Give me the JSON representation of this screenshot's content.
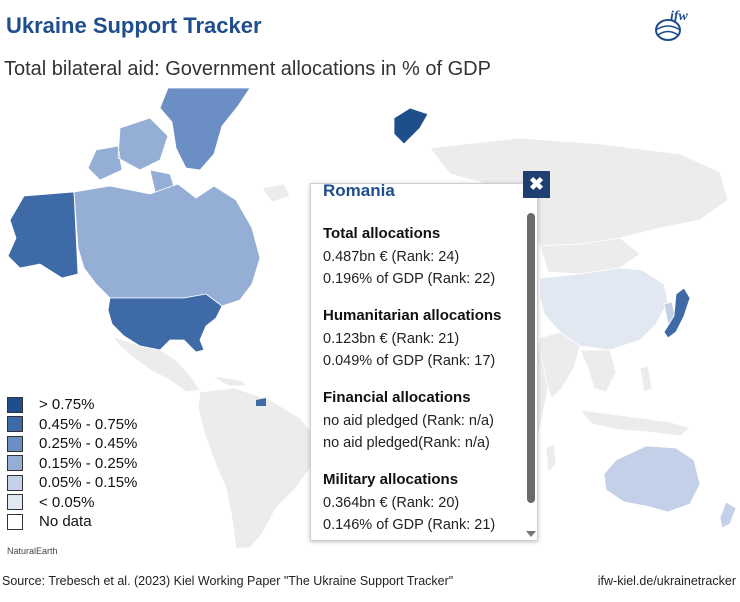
{
  "header": {
    "title": "Ukraine Support Tracker",
    "subtitle": "Total bilateral aid: Government allocations in % of GDP",
    "logo_text": "ifw"
  },
  "colors": {
    "gt_075": "#1f4e8c",
    "r045_075": "#3e6aa8",
    "r025_045": "#6b8fc4",
    "r015_025": "#94aed6",
    "r005_015": "#c3d0e8",
    "lt_005": "#e2e8f2",
    "no_data": "#ececec",
    "ocean": "#ffffff"
  },
  "legend": {
    "items": [
      {
        "label": "> 0.75%",
        "color": "#1f4e8c"
      },
      {
        "label": "0.45% - 0.75%",
        "color": "#3e6aa8"
      },
      {
        "label": "0.25% - 0.45%",
        "color": "#6b8fc4"
      },
      {
        "label": "0.15% - 0.25%",
        "color": "#94aed6"
      },
      {
        "label": "0.05% - 0.15%",
        "color": "#c3d0e8"
      },
      {
        "label": "< 0.05%",
        "color": "#e2e8f2"
      },
      {
        "label": "No data",
        "color": "#ffffff"
      }
    ]
  },
  "attribution": "NaturalEarth",
  "footer": {
    "source": "Source: Trebesch et al. (2023) Kiel Working Paper \"The Ukraine Support Tracker\"",
    "url": "ifw-kiel.de/ukrainetracker"
  },
  "popup": {
    "country": "Romania",
    "close_label": "✖",
    "sections": [
      {
        "heading": "Total allocations",
        "line1": "0.487bn € (Rank: 24)",
        "line2": "0.196% of GDP  (Rank:  22)"
      },
      {
        "heading": "Humanitarian allocations",
        "line1": "0.123bn € (Rank: 21)",
        "line2": "0.049% of GDP (Rank: 17)"
      },
      {
        "heading": "Financial  allocations",
        "line1": "no aid pledged (Rank: n/a)",
        "line2": "no aid pledged(Rank: n/a)"
      },
      {
        "heading": "Military allocations",
        "line1": "0.364bn € (Rank: 20)",
        "line2": " 0.146% of GDP (Rank: 21)"
      }
    ]
  }
}
